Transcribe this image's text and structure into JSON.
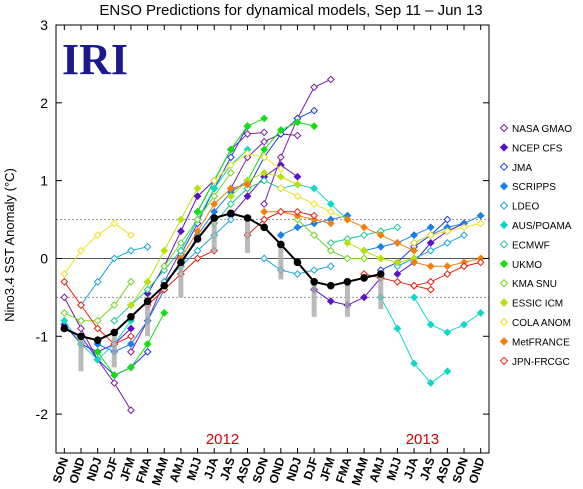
{
  "logo_text": "IRI",
  "chart_data": {
    "type": "line",
    "title": "ENSO Predictions for dynamical models, Sep 11 – Jun 13",
    "ylabel": "Nino3.4 SST Anomaly (°C)",
    "xlabel": "",
    "ylim": [
      -2.5,
      3
    ],
    "yticks": [
      "-2",
      "-1",
      "0",
      "1",
      "2",
      "3"
    ],
    "ytick_values": [
      -2,
      -1,
      0,
      1,
      2,
      3
    ],
    "categories": [
      "SON",
      "OND",
      "NDJ",
      "DJF",
      "JFM",
      "FMA",
      "MAM",
      "AMJ",
      "MJJ",
      "JJA",
      "JAS",
      "ASO",
      "SON",
      "OND",
      "NDJ",
      "DJF",
      "JFM",
      "FMA",
      "MAM",
      "AMJ",
      "MJJ",
      "JJA",
      "JAS",
      "ASO",
      "SON",
      "OND"
    ],
    "year_labels": [
      {
        "text": "2012",
        "category_index": 9.5
      },
      {
        "text": "2013",
        "category_index": 21.5
      }
    ],
    "reference_lines": [
      0.5,
      -0.5
    ],
    "grid": false,
    "legend_position": "right",
    "observed": {
      "color": "#000000",
      "start_index": 0,
      "values": [
        -0.9,
        -1.0,
        -1.05,
        -0.95,
        -0.75,
        -0.55,
        -0.35,
        -0.05,
        0.25,
        0.52,
        0.58,
        0.52,
        0.4,
        0.18,
        -0.05,
        -0.3,
        -0.35,
        -0.3,
        -0.25,
        -0.2
      ]
    },
    "series": [
      {
        "name": "NASA GMAO",
        "color": "#7a1fa2",
        "marker": "diamond-open"
      },
      {
        "name": "NCEP CFS",
        "color": "#5a12c8",
        "marker": "diamond-filled"
      },
      {
        "name": "JMA",
        "color": "#1e3fd0",
        "marker": "diamond-open"
      },
      {
        "name": "SCRIPPS",
        "color": "#1a7fe8",
        "marker": "diamond-filled"
      },
      {
        "name": "LDEO",
        "color": "#1aa8d8",
        "marker": "diamond-open"
      },
      {
        "name": "AUS/POAMA",
        "color": "#10d8c8",
        "marker": "diamond-filled"
      },
      {
        "name": "ECMWF",
        "color": "#20c890",
        "marker": "diamond-open"
      },
      {
        "name": "UKMO",
        "color": "#10e010",
        "marker": "diamond-filled"
      },
      {
        "name": "KMA SNU",
        "color": "#70d820",
        "marker": "diamond-open"
      },
      {
        "name": "ESSIC ICM",
        "color": "#b8e010",
        "marker": "diamond-filled"
      },
      {
        "name": "COLA ANOM",
        "color": "#f0e020",
        "marker": "diamond-open"
      },
      {
        "name": "MetFRANCE",
        "color": "#f08010",
        "marker": "diamond-filled"
      },
      {
        "name": "JPN-FRCGC",
        "color": "#e02010",
        "marker": "diamond-open"
      }
    ],
    "forecasts": [
      {
        "series": 0,
        "start": 0,
        "values": [
          -0.5,
          -0.9,
          -1.3,
          -1.6,
          -1.95
        ]
      },
      {
        "series": 0,
        "start": 4,
        "values": [
          -1.2,
          -0.8,
          -0.3,
          0.1,
          0.5
        ]
      },
      {
        "series": 0,
        "start": 8,
        "values": [
          0.6,
          1.0,
          1.4,
          1.6,
          1.62
        ]
      },
      {
        "series": 0,
        "start": 10,
        "values": [
          0.9,
          1.3,
          1.5,
          1.6,
          1.58
        ]
      },
      {
        "series": 0,
        "start": 12,
        "values": [
          0.7,
          1.3,
          1.8,
          2.2,
          2.3
        ]
      },
      {
        "series": 1,
        "start": 0,
        "values": [
          -0.85,
          -1.1,
          -1.2,
          -1.1,
          -0.9
        ]
      },
      {
        "series": 1,
        "start": 5,
        "values": [
          -0.45,
          -0.1,
          0.35,
          0.8,
          1.0
        ]
      },
      {
        "series": 1,
        "start": 10,
        "values": [
          0.55,
          0.8,
          1.05,
          1.2,
          1.05
        ]
      },
      {
        "series": 1,
        "start": 15,
        "values": [
          -0.4,
          -0.55,
          -0.6,
          -0.5,
          -0.25
        ]
      },
      {
        "series": 1,
        "start": 20,
        "values": [
          -0.2,
          -0.05,
          0.2,
          0.35,
          0.45
        ]
      },
      {
        "series": 2,
        "start": 1,
        "values": [
          -1.0,
          -1.3,
          -1.5,
          -1.4,
          -1.2
        ]
      },
      {
        "series": 2,
        "start": 7,
        "values": [
          0.05,
          0.45,
          0.9,
          1.3,
          1.7
        ]
      },
      {
        "series": 2,
        "start": 11,
        "values": [
          0.9,
          1.3,
          1.6,
          1.8,
          1.9
        ]
      },
      {
        "series": 2,
        "start": 19,
        "values": [
          -0.15,
          -0.05,
          0.15,
          0.3,
          0.5
        ]
      },
      {
        "series": 3,
        "start": 2,
        "values": [
          -1.1,
          -1.2,
          -1.1,
          -0.8,
          -0.4
        ]
      },
      {
        "series": 3,
        "start": 7,
        "values": [
          -0.1,
          0.3,
          0.6,
          0.85,
          1.0
        ]
      },
      {
        "series": 3,
        "start": 13,
        "values": [
          0.3,
          0.4,
          0.45,
          0.5,
          0.55
        ]
      },
      {
        "series": 3,
        "start": 18,
        "values": [
          0.1,
          0.15,
          0.2,
          0.3,
          0.4
        ]
      },
      {
        "series": 3,
        "start": 21,
        "values": [
          0.2,
          0.3,
          0.4,
          0.45,
          0.55
        ]
      },
      {
        "series": 4,
        "start": 1,
        "values": [
          -0.6,
          -0.3,
          0.0,
          0.1,
          0.15
        ]
      },
      {
        "series": 4,
        "start": 6,
        "values": [
          -0.3,
          -0.1,
          0.1,
          0.3,
          0.5
        ]
      },
      {
        "series": 4,
        "start": 12,
        "values": [
          0.0,
          -0.15,
          -0.2,
          -0.15,
          -0.1
        ]
      },
      {
        "series": 4,
        "start": 20,
        "values": [
          -0.1,
          0.0,
          0.1,
          0.2,
          0.3
        ]
      },
      {
        "series": 5,
        "start": 0,
        "values": [
          -0.8,
          -1.1,
          -1.3,
          -1.1,
          -0.8
        ]
      },
      {
        "series": 5,
        "start": 7,
        "values": [
          0.1,
          0.5,
          0.9,
          1.2,
          1.4
        ]
      },
      {
        "series": 5,
        "start": 13,
        "values": [
          0.9,
          0.95,
          0.9,
          0.7,
          0.5
        ]
      },
      {
        "series": 5,
        "start": 19,
        "values": [
          -0.5,
          -0.9,
          -1.35,
          -1.6,
          -1.45
        ]
      },
      {
        "series": 5,
        "start": 21,
        "values": [
          -0.5,
          -0.85,
          -0.95,
          -0.85,
          -0.7
        ]
      },
      {
        "series": 6,
        "start": 3,
        "values": [
          -0.8,
          -0.6,
          -0.4,
          -0.15,
          0.1
        ]
      },
      {
        "series": 6,
        "start": 9,
        "values": [
          0.45,
          0.7,
          0.9,
          1.0,
          0.9
        ]
      },
      {
        "series": 6,
        "start": 16,
        "values": [
          0.2,
          0.25,
          0.3,
          0.35,
          0.4
        ]
      },
      {
        "series": 7,
        "start": 2,
        "values": [
          -1.2,
          -1.5,
          -1.4,
          -1.1,
          -0.7
        ]
      },
      {
        "series": 7,
        "start": 8,
        "values": [
          0.6,
          1.0,
          1.4,
          1.7,
          1.8
        ]
      },
      {
        "series": 7,
        "start": 11,
        "values": [
          1.0,
          1.4,
          1.65,
          1.75,
          1.7
        ]
      },
      {
        "series": 8,
        "start": 0,
        "values": [
          -0.7,
          -0.8,
          -0.8,
          -0.6,
          -0.3
        ]
      },
      {
        "series": 8,
        "start": 6,
        "values": [
          -0.1,
          0.2,
          0.5,
          0.8,
          1.1
        ]
      },
      {
        "series": 8,
        "start": 14,
        "values": [
          0.5,
          0.3,
          0.1,
          0.0,
          0.0
        ]
      },
      {
        "series": 9,
        "start": 4,
        "values": [
          -0.6,
          -0.3,
          0.1,
          0.5,
          0.9
        ]
      },
      {
        "series": 9,
        "start": 10,
        "values": [
          0.8,
          1.0,
          1.1,
          1.05,
          0.95
        ]
      },
      {
        "series": 9,
        "start": 17,
        "values": [
          0.2,
          0.1,
          0.0,
          -0.05,
          0.0
        ]
      },
      {
        "series": 10,
        "start": 0,
        "values": [
          -0.2,
          0.1,
          0.3,
          0.45,
          0.3
        ]
      },
      {
        "series": 10,
        "start": 9,
        "values": [
          1.0,
          1.2,
          1.35,
          1.3,
          1.15
        ]
      },
      {
        "series": 10,
        "start": 13,
        "values": [
          0.9,
          0.8,
          0.7,
          0.6,
          0.5
        ]
      },
      {
        "series": 10,
        "start": 21,
        "values": [
          0.2,
          0.3,
          0.35,
          0.4,
          0.45
        ]
      },
      {
        "series": 11,
        "start": 7,
        "values": [
          0.0,
          0.35,
          0.7,
          0.9,
          0.95
        ]
      },
      {
        "series": 11,
        "start": 12,
        "values": [
          0.6,
          0.6,
          0.55,
          0.5,
          0.45
        ]
      },
      {
        "series": 11,
        "start": 17,
        "values": [
          0.5,
          0.4,
          0.3,
          0.2,
          0.1
        ]
      },
      {
        "series": 11,
        "start": 21,
        "values": [
          -0.05,
          -0.1,
          -0.1,
          -0.05,
          0.0
        ]
      },
      {
        "series": 12,
        "start": 0,
        "values": [
          -0.3,
          -0.6,
          -0.9,
          -1.1,
          -1.0
        ]
      },
      {
        "series": 12,
        "start": 5,
        "values": [
          -0.6,
          -0.4,
          -0.2,
          0.0,
          0.1
        ]
      },
      {
        "series": 12,
        "start": 11,
        "values": [
          0.3,
          0.5,
          0.6,
          0.6,
          0.55
        ]
      },
      {
        "series": 12,
        "start": 18,
        "values": [
          -0.2,
          -0.25,
          -0.3,
          -0.35,
          -0.4
        ]
      },
      {
        "series": 12,
        "start": 21,
        "values": [
          -0.35,
          -0.3,
          -0.2,
          -0.1,
          -0.05
        ]
      }
    ]
  }
}
